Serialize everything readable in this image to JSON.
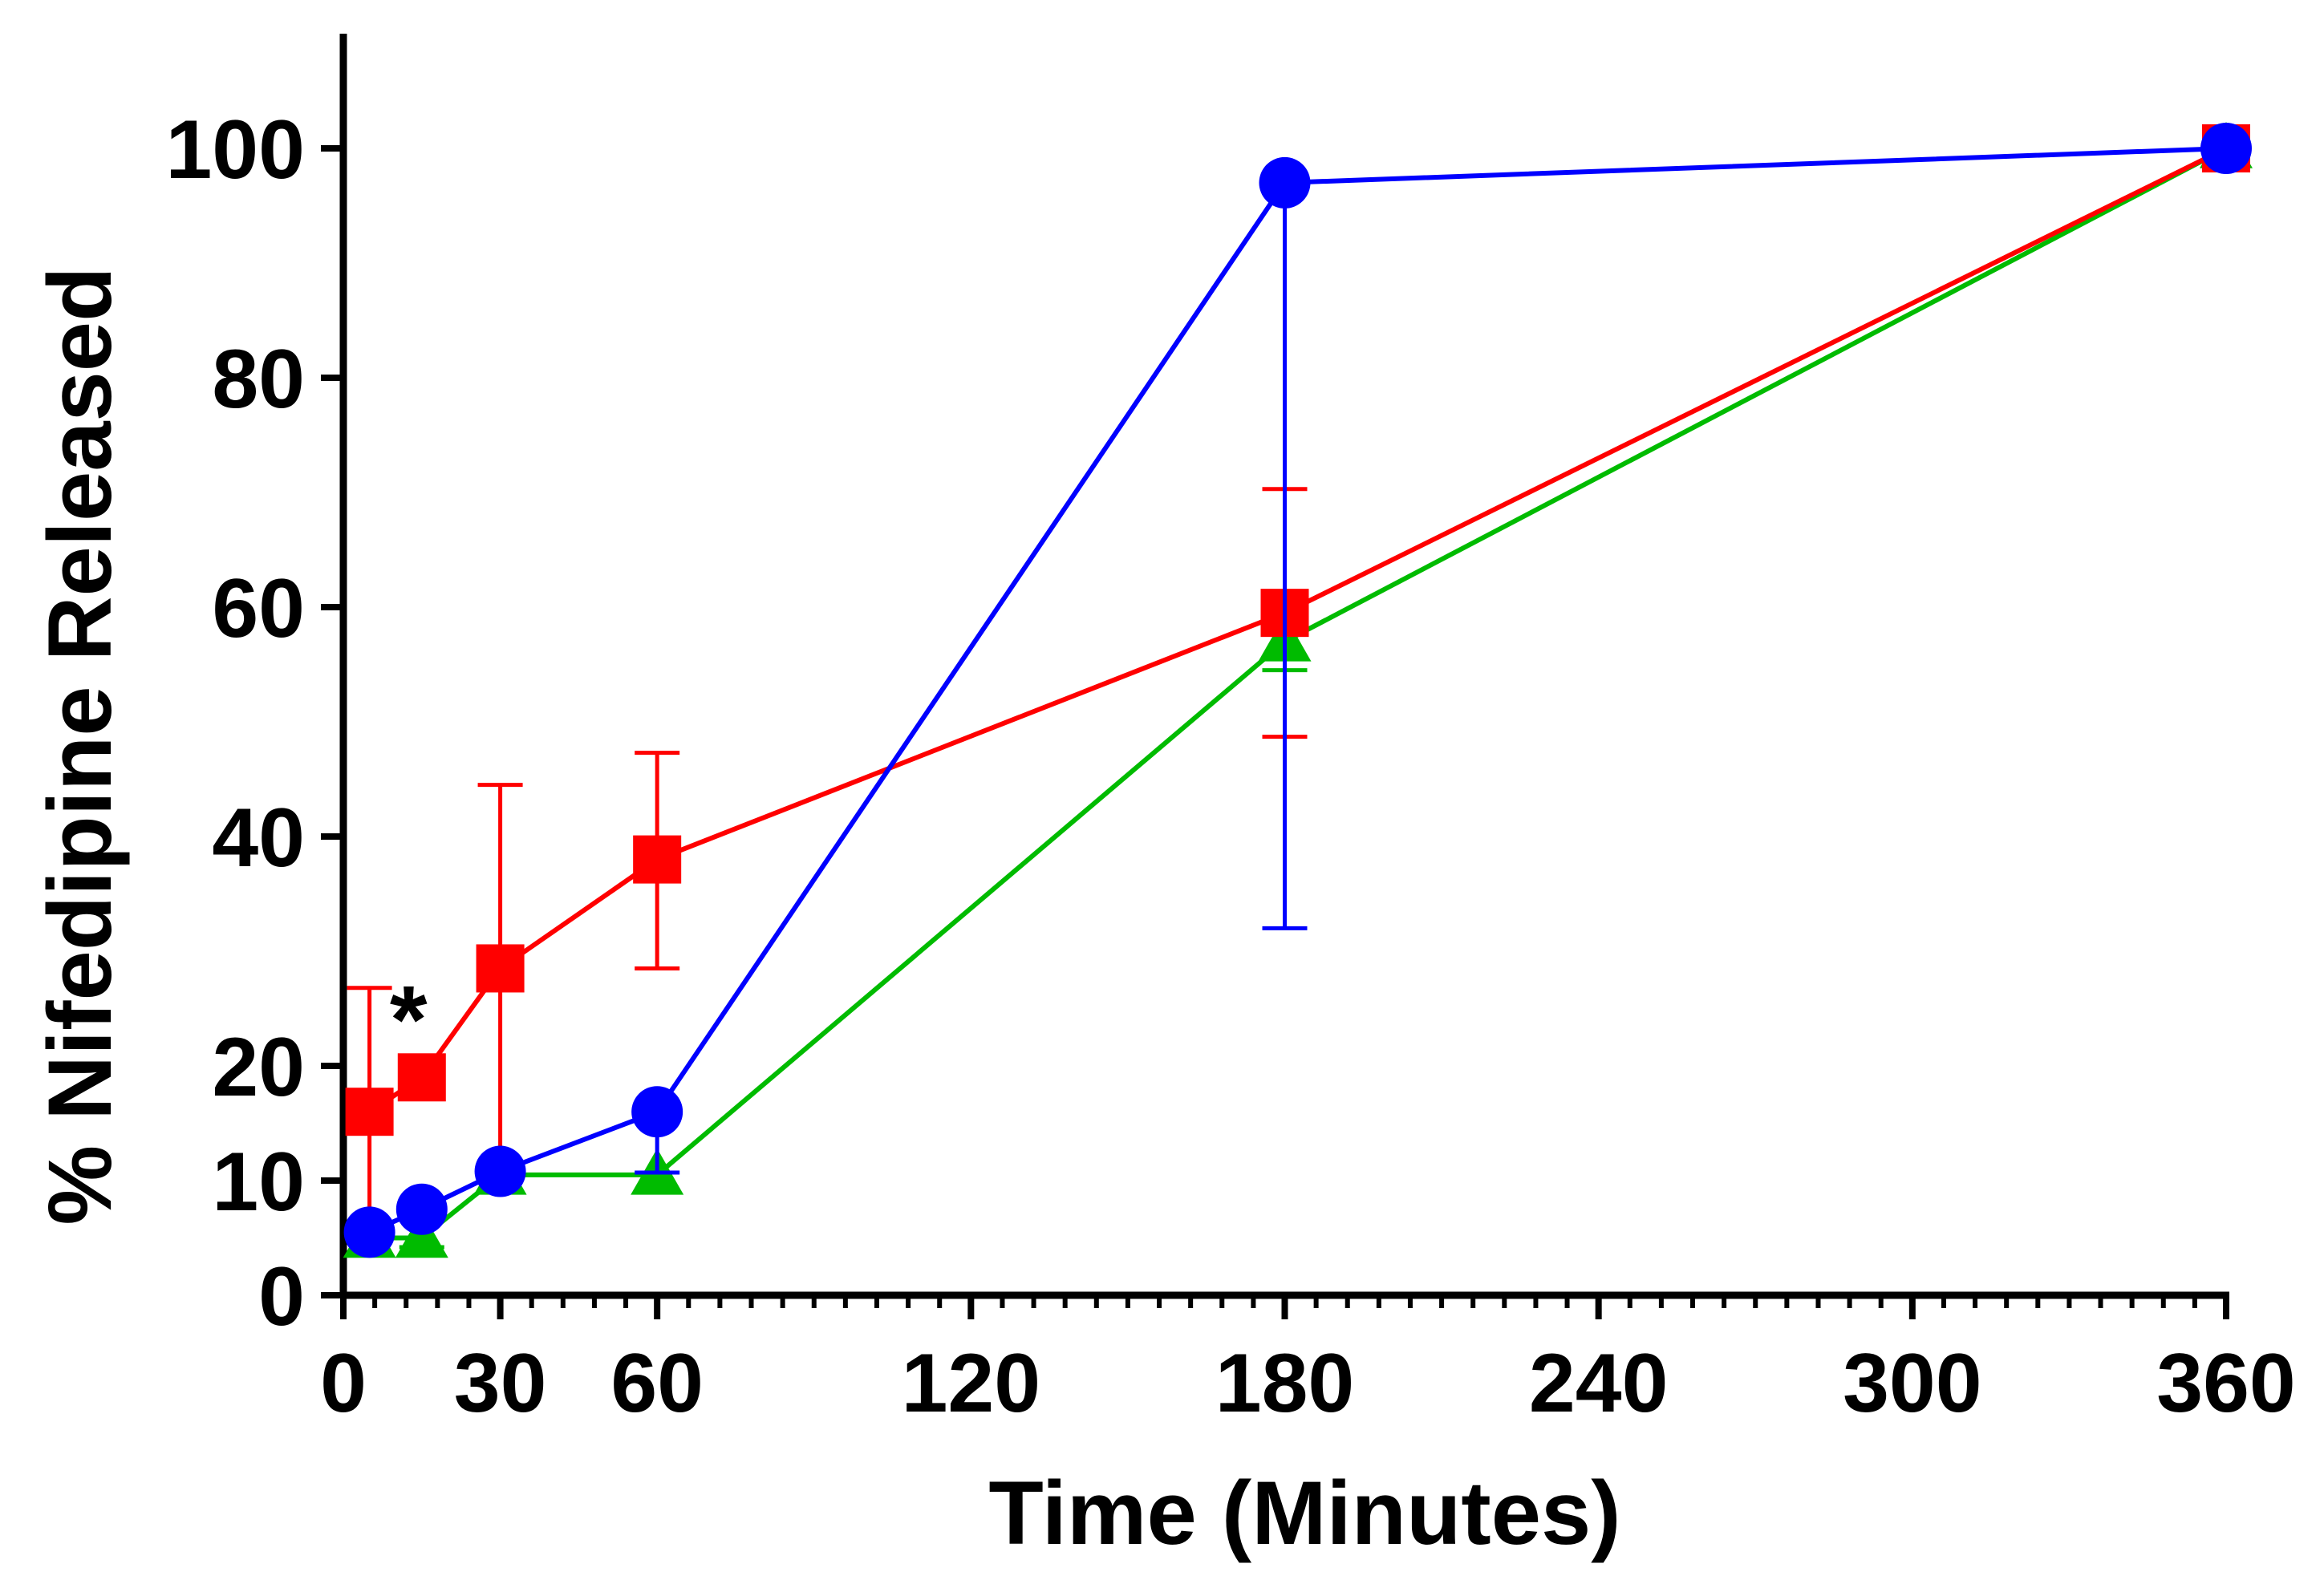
{
  "chart_data": {
    "type": "line",
    "title": "",
    "xlabel": "Time (Minutes)",
    "ylabel": "% Nifedipine Released",
    "xlim": [
      0,
      360
    ],
    "ylim": [
      0,
      110
    ],
    "x_ticks": [
      0,
      30,
      60,
      120,
      180,
      240,
      300,
      360
    ],
    "y_ticks": [
      0,
      10,
      20,
      40,
      60,
      80,
      100
    ],
    "x_minor_step": 6,
    "grid": false,
    "legend": "none",
    "series": [
      {
        "name": "green",
        "color": "#00bb00",
        "marker": "triangle",
        "x": [
          5,
          15,
          30,
          60,
          180,
          360
        ],
        "y": [
          5,
          5,
          10.5,
          10.5,
          57,
          100
        ],
        "err_low": [
          0,
          0.8,
          0,
          0,
          2.5,
          0
        ],
        "err_high": [
          0,
          0,
          0,
          0,
          0,
          0
        ]
      },
      {
        "name": "red",
        "color": "#ff0000",
        "marker": "square",
        "x": [
          5,
          15,
          30,
          60,
          180,
          360
        ],
        "y": [
          16,
          19,
          28.5,
          38,
          59.5,
          100
        ],
        "err_low": [
          10,
          0,
          17.5,
          9.5,
          10.8,
          0
        ],
        "err_high": [
          10.8,
          0,
          16,
          9.3,
          10.8,
          0
        ]
      },
      {
        "name": "blue",
        "color": "#0000ff",
        "marker": "circle",
        "x": [
          5,
          15,
          30,
          60,
          180,
          360
        ],
        "y": [
          5.5,
          7.5,
          10.8,
          16,
          97,
          100
        ],
        "err_low": [
          0,
          0,
          0,
          5.3,
          65,
          0
        ],
        "err_high": [
          0,
          0,
          0,
          0,
          0,
          0
        ]
      }
    ],
    "annotations": [
      {
        "text": "*",
        "x": 14,
        "y": 25
      }
    ]
  }
}
